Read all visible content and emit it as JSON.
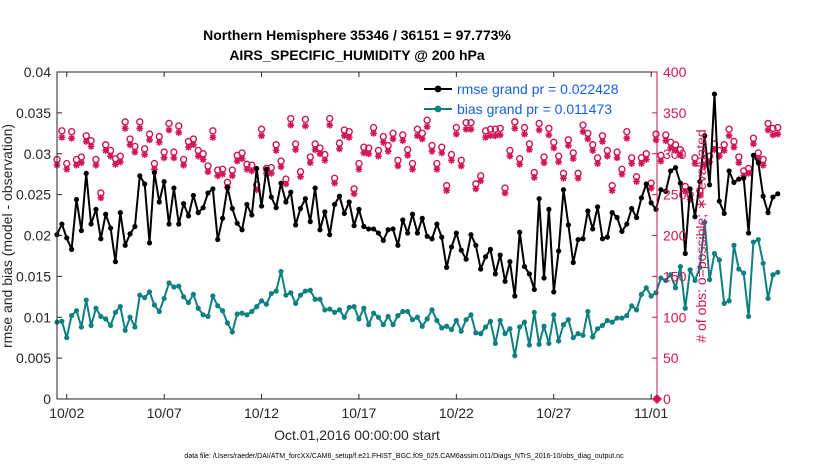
{
  "chart_data": {
    "type": "line",
    "title": "Northern Hemisphere 35346 / 36151 = 97.773%",
    "subtitle": "AIRS_SPECIFIC_HUMIDITY @ 200 hPa",
    "xlabel": "Oct.01,2016 00:00:00 start",
    "ylabel_left": "rmse and bias (model - observation)",
    "ylabel_right": "# of obs: o=possible; ∗=evaluated",
    "xlim": [
      1.5,
      32.3
    ],
    "ylim_left": [
      0,
      0.04
    ],
    "ylim_right": [
      0,
      400
    ],
    "x_ticks": [
      {
        "value": 2,
        "label": "10/02"
      },
      {
        "value": 7,
        "label": "10/07"
      },
      {
        "value": 12,
        "label": "10/12"
      },
      {
        "value": 17,
        "label": "10/17"
      },
      {
        "value": 22,
        "label": "10/22"
      },
      {
        "value": 27,
        "label": "10/27"
      },
      {
        "value": 32,
        "label": "11/01"
      }
    ],
    "y_ticks_left": [
      "0",
      "0.005",
      "0.01",
      "0.015",
      "0.02",
      "0.025",
      "0.03",
      "0.035",
      "0.04"
    ],
    "y_ticks_right": [
      "0",
      "50",
      "100",
      "150",
      "200",
      "250",
      "300",
      "350",
      "400"
    ],
    "legend": [
      {
        "label": "rmse grand pr = 0.022428",
        "color": "#000000"
      },
      {
        "label": "bias grand pr = 0.011473",
        "color": "#0E8080"
      }
    ],
    "grid": false,
    "footer": "data file: /Users/raeder/DAI/ATM_forcXX/CAM6_setup/f.e21.FHIST_BGC.f09_025.CAM6assim.011/Diags_NTrS_2016-10/obs_diag_output.nc",
    "series": [
      {
        "name": "rmse",
        "color": "#000000",
        "x0": 1.5,
        "dx": 0.25,
        "values": [
          0.0201,
          0.0214,
          0.0197,
          0.0183,
          0.0244,
          0.0206,
          0.0276,
          0.0214,
          0.0232,
          0.0196,
          0.0226,
          0.0209,
          0.0168,
          0.0228,
          0.0188,
          0.0202,
          0.0211,
          0.0273,
          0.0263,
          0.0191,
          0.0277,
          0.0241,
          0.0266,
          0.0214,
          0.0258,
          0.0214,
          0.0239,
          0.0224,
          0.0249,
          0.0228,
          0.0234,
          0.0252,
          0.0257,
          0.0195,
          0.0221,
          0.0259,
          0.0233,
          0.0215,
          0.0207,
          0.0238,
          0.0225,
          0.0282,
          0.0236,
          0.0281,
          0.0247,
          0.0234,
          0.0264,
          0.0241,
          0.0253,
          0.0213,
          0.0233,
          0.0245,
          0.0217,
          0.0258,
          0.0207,
          0.0229,
          0.0201,
          0.0238,
          0.0248,
          0.0227,
          0.0241,
          0.0212,
          0.0232,
          0.0211,
          0.0208,
          0.0208,
          0.0203,
          0.0194,
          0.0207,
          0.0208,
          0.0188,
          0.0219,
          0.0203,
          0.0226,
          0.0203,
          0.0221,
          0.0199,
          0.0196,
          0.0214,
          0.0198,
          0.0161,
          0.0186,
          0.0203,
          0.0182,
          0.0171,
          0.0201,
          0.0188,
          0.0159,
          0.0174,
          0.0183,
          0.0153,
          0.0176,
          0.0144,
          0.0168,
          0.0126,
          0.0204,
          0.0162,
          0.0153,
          0.0134,
          0.0245,
          0.0148,
          0.0232,
          0.0131,
          0.0181,
          0.0256,
          0.0213,
          0.0167,
          0.0195,
          0.0196,
          0.023,
          0.0208,
          0.0235,
          0.0196,
          0.0198,
          0.0228,
          0.0222,
          0.0205,
          0.0214,
          0.0233,
          0.0222,
          0.0246,
          0.0263,
          0.024,
          0.0232,
          0.0256,
          0.0254,
          0.0279,
          0.0283,
          0.0264,
          0.0178,
          0.0257,
          0.0223,
          0.0266,
          0.0322,
          0.0262,
          0.0373,
          0.0242,
          0.0227,
          0.0279,
          0.0265,
          0.0269,
          0.027,
          0.0203,
          0.0298,
          0.0289,
          0.0248,
          0.0228,
          0.0247,
          0.0251
        ]
      },
      {
        "name": "bias",
        "color": "#0E8080",
        "x0": 1.5,
        "dx": 0.25,
        "values": [
          0.0094,
          0.0095,
          0.0075,
          0.0102,
          0.0108,
          0.0088,
          0.0121,
          0.009,
          0.0111,
          0.0101,
          0.0098,
          0.009,
          0.0106,
          0.0113,
          0.0084,
          0.01,
          0.0088,
          0.0127,
          0.0124,
          0.0131,
          0.0115,
          0.0107,
          0.0123,
          0.0142,
          0.0137,
          0.0138,
          0.0125,
          0.0118,
          0.0128,
          0.0111,
          0.0103,
          0.0101,
          0.0126,
          0.0114,
          0.0108,
          0.0093,
          0.0082,
          0.0104,
          0.0105,
          0.0103,
          0.0107,
          0.0113,
          0.012,
          0.0116,
          0.0129,
          0.0132,
          0.0156,
          0.0127,
          0.013,
          0.0117,
          0.0127,
          0.0132,
          0.0133,
          0.0122,
          0.0122,
          0.0109,
          0.011,
          0.0106,
          0.0109,
          0.01,
          0.0112,
          0.0113,
          0.0098,
          0.0111,
          0.0091,
          0.0105,
          0.01,
          0.0091,
          0.0101,
          0.0091,
          0.0102,
          0.0107,
          0.0107,
          0.0097,
          0.01,
          0.0089,
          0.0098,
          0.0109,
          0.0096,
          0.0087,
          0.0089,
          0.0085,
          0.0096,
          0.0083,
          0.0097,
          0.0103,
          0.0081,
          0.008,
          0.0088,
          0.0095,
          0.0068,
          0.0096,
          0.008,
          0.0086,
          0.0053,
          0.0088,
          0.0094,
          0.0066,
          0.0106,
          0.0067,
          0.0089,
          0.0068,
          0.0103,
          0.0071,
          0.0091,
          0.0097,
          0.0075,
          0.008,
          0.0078,
          0.0107,
          0.0076,
          0.0086,
          0.009,
          0.0096,
          0.0094,
          0.0099,
          0.0099,
          0.0102,
          0.0114,
          0.0109,
          0.0128,
          0.0136,
          0.0126,
          0.013,
          0.0148,
          0.0145,
          0.0152,
          0.0136,
          0.0162,
          0.0111,
          0.0158,
          0.0145,
          0.0161,
          0.0216,
          0.0146,
          0.0178,
          0.017,
          0.0117,
          0.012,
          0.0188,
          0.0159,
          0.0154,
          0.0101,
          0.0192,
          0.0195,
          0.0166,
          0.0123,
          0.0152,
          0.0155
        ]
      },
      {
        "name": "obs possible (o)",
        "color": "#D11556",
        "axis": "right",
        "x0": 1.5,
        "dx": 0.25,
        "values": [
          293,
          328,
          288,
          327,
          293,
          296,
          322,
          316,
          293,
          252,
          311,
          304,
          294,
          297,
          339,
          318,
          309,
          339,
          306,
          324,
          288,
          321,
          302,
          337,
          302,
          334,
          293,
          315,
          318,
          304,
          300,
          285,
          328,
          280,
          281,
          265,
          280,
          298,
          301,
          287,
          286,
          262,
          330,
          282,
          283,
          311,
          291,
          269,
          343,
          312,
          278,
          342,
          296,
          312,
          307,
          299,
          343,
          270,
          313,
          329,
          327,
          257,
          288,
          308,
          307,
          332,
          304,
          321,
          310,
          325,
          292,
          323,
          305,
          288,
          330,
          325,
          341,
          310,
          288,
          308,
          261,
          299,
          332,
          292,
          338,
          338,
          263,
          273,
          328,
          330,
          330,
          331,
          258,
          304,
          339,
          294,
          332,
          312,
          277,
          337,
          296,
          331,
          314,
          297,
          276,
          317,
          301,
          276,
          335,
          325,
          311,
          295,
          322,
          304,
          261,
          302,
          281,
          327,
          295,
          272,
          295,
          300,
          264,
          324,
          298,
          323,
          314,
          311,
          305,
          260,
          250,
          295,
          255,
          293,
          297,
          312,
          304,
          311,
          330,
          315,
          296,
          279,
          282,
          319,
          301,
          293,
          337,
          331,
          332
        ]
      },
      {
        "name": "obs evaluated (*)",
        "color": "#D11556",
        "axis": "right",
        "x0": 1.5,
        "dx": 0.25,
        "values": [
          286,
          320,
          281,
          319,
          286,
          289,
          315,
          309,
          286,
          246,
          304,
          297,
          287,
          290,
          331,
          311,
          302,
          331,
          299,
          317,
          281,
          314,
          295,
          329,
          295,
          326,
          286,
          308,
          311,
          297,
          293,
          278,
          320,
          273,
          275,
          259,
          273,
          291,
          294,
          281,
          279,
          256,
          322,
          276,
          276,
          304,
          284,
          263,
          335,
          305,
          272,
          334,
          289,
          305,
          300,
          292,
          335,
          264,
          306,
          322,
          320,
          251,
          281,
          301,
          300,
          325,
          297,
          314,
          303,
          318,
          285,
          316,
          298,
          281,
          322,
          318,
          333,
          303,
          281,
          301,
          255,
          292,
          324,
          285,
          330,
          330,
          257,
          267,
          320,
          322,
          322,
          323,
          252,
          297,
          331,
          287,
          324,
          305,
          271,
          329,
          289,
          323,
          307,
          290,
          270,
          310,
          294,
          270,
          327,
          318,
          304,
          288,
          315,
          297,
          255,
          295,
          275,
          319,
          288,
          266,
          288,
          293,
          258,
          317,
          291,
          316,
          307,
          304,
          298,
          254,
          244,
          288,
          249,
          286,
          290,
          305,
          297,
          304,
          322,
          308,
          289,
          273,
          276,
          312,
          294,
          286,
          329,
          323,
          324
        ]
      }
    ]
  }
}
